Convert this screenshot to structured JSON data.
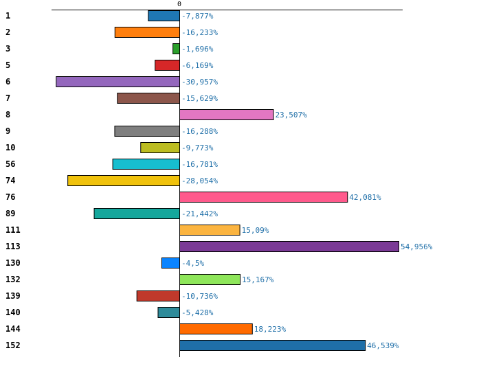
{
  "chart_data": {
    "type": "bar",
    "orientation": "horizontal",
    "title": "",
    "xlabel": "",
    "ylabel": "",
    "xlim": [
      -33.6,
      56.1
    ],
    "x_ticks": [
      0
    ],
    "x_tick_labels": [
      "0"
    ],
    "grid": false,
    "legend": "none",
    "categories": [
      "1",
      "2",
      "3",
      "5",
      "6",
      "7",
      "8",
      "9",
      "10",
      "56",
      "74",
      "76",
      "89",
      "111",
      "113",
      "130",
      "132",
      "139",
      "140",
      "144",
      "152"
    ],
    "values": [
      -7.877,
      -16.233,
      -1.696,
      -6.169,
      -30.957,
      -15.629,
      23.507,
      -16.288,
      -9.773,
      -16.781,
      -28.054,
      42.081,
      -21.442,
      15.09,
      54.956,
      -4.5,
      15.167,
      -10.736,
      -5.428,
      18.223,
      46.539
    ],
    "value_labels": [
      "-7,877%",
      "-16,233%",
      "-1,696%",
      "-6,169%",
      "-30,957%",
      "-15,629%",
      "23,507%",
      "-16,288%",
      "-9,773%",
      "-16,781%",
      "-28,054%",
      "42,081%",
      "-21,442%",
      "15,09%",
      "54,956%",
      "-4,5%",
      "15,167%",
      "-10,736%",
      "-5,428%",
      "18,223%",
      "46,539%"
    ],
    "colors": [
      "#1f77b4",
      "#ff7f0e",
      "#2ca02c",
      "#d62728",
      "#9467bd",
      "#8c564b",
      "#e377c2",
      "#7f7f7f",
      "#bcbd22",
      "#17becf",
      "#f0c20c",
      "#ff5a8c",
      "#14a79c",
      "#fbb440",
      "#7b3a96",
      "#0a84ff",
      "#8ee65a",
      "#c0392b",
      "#2e8b9a",
      "#ff6a00",
      "#1f6fa8"
    ],
    "value_label_color": "#1f6fa8"
  }
}
